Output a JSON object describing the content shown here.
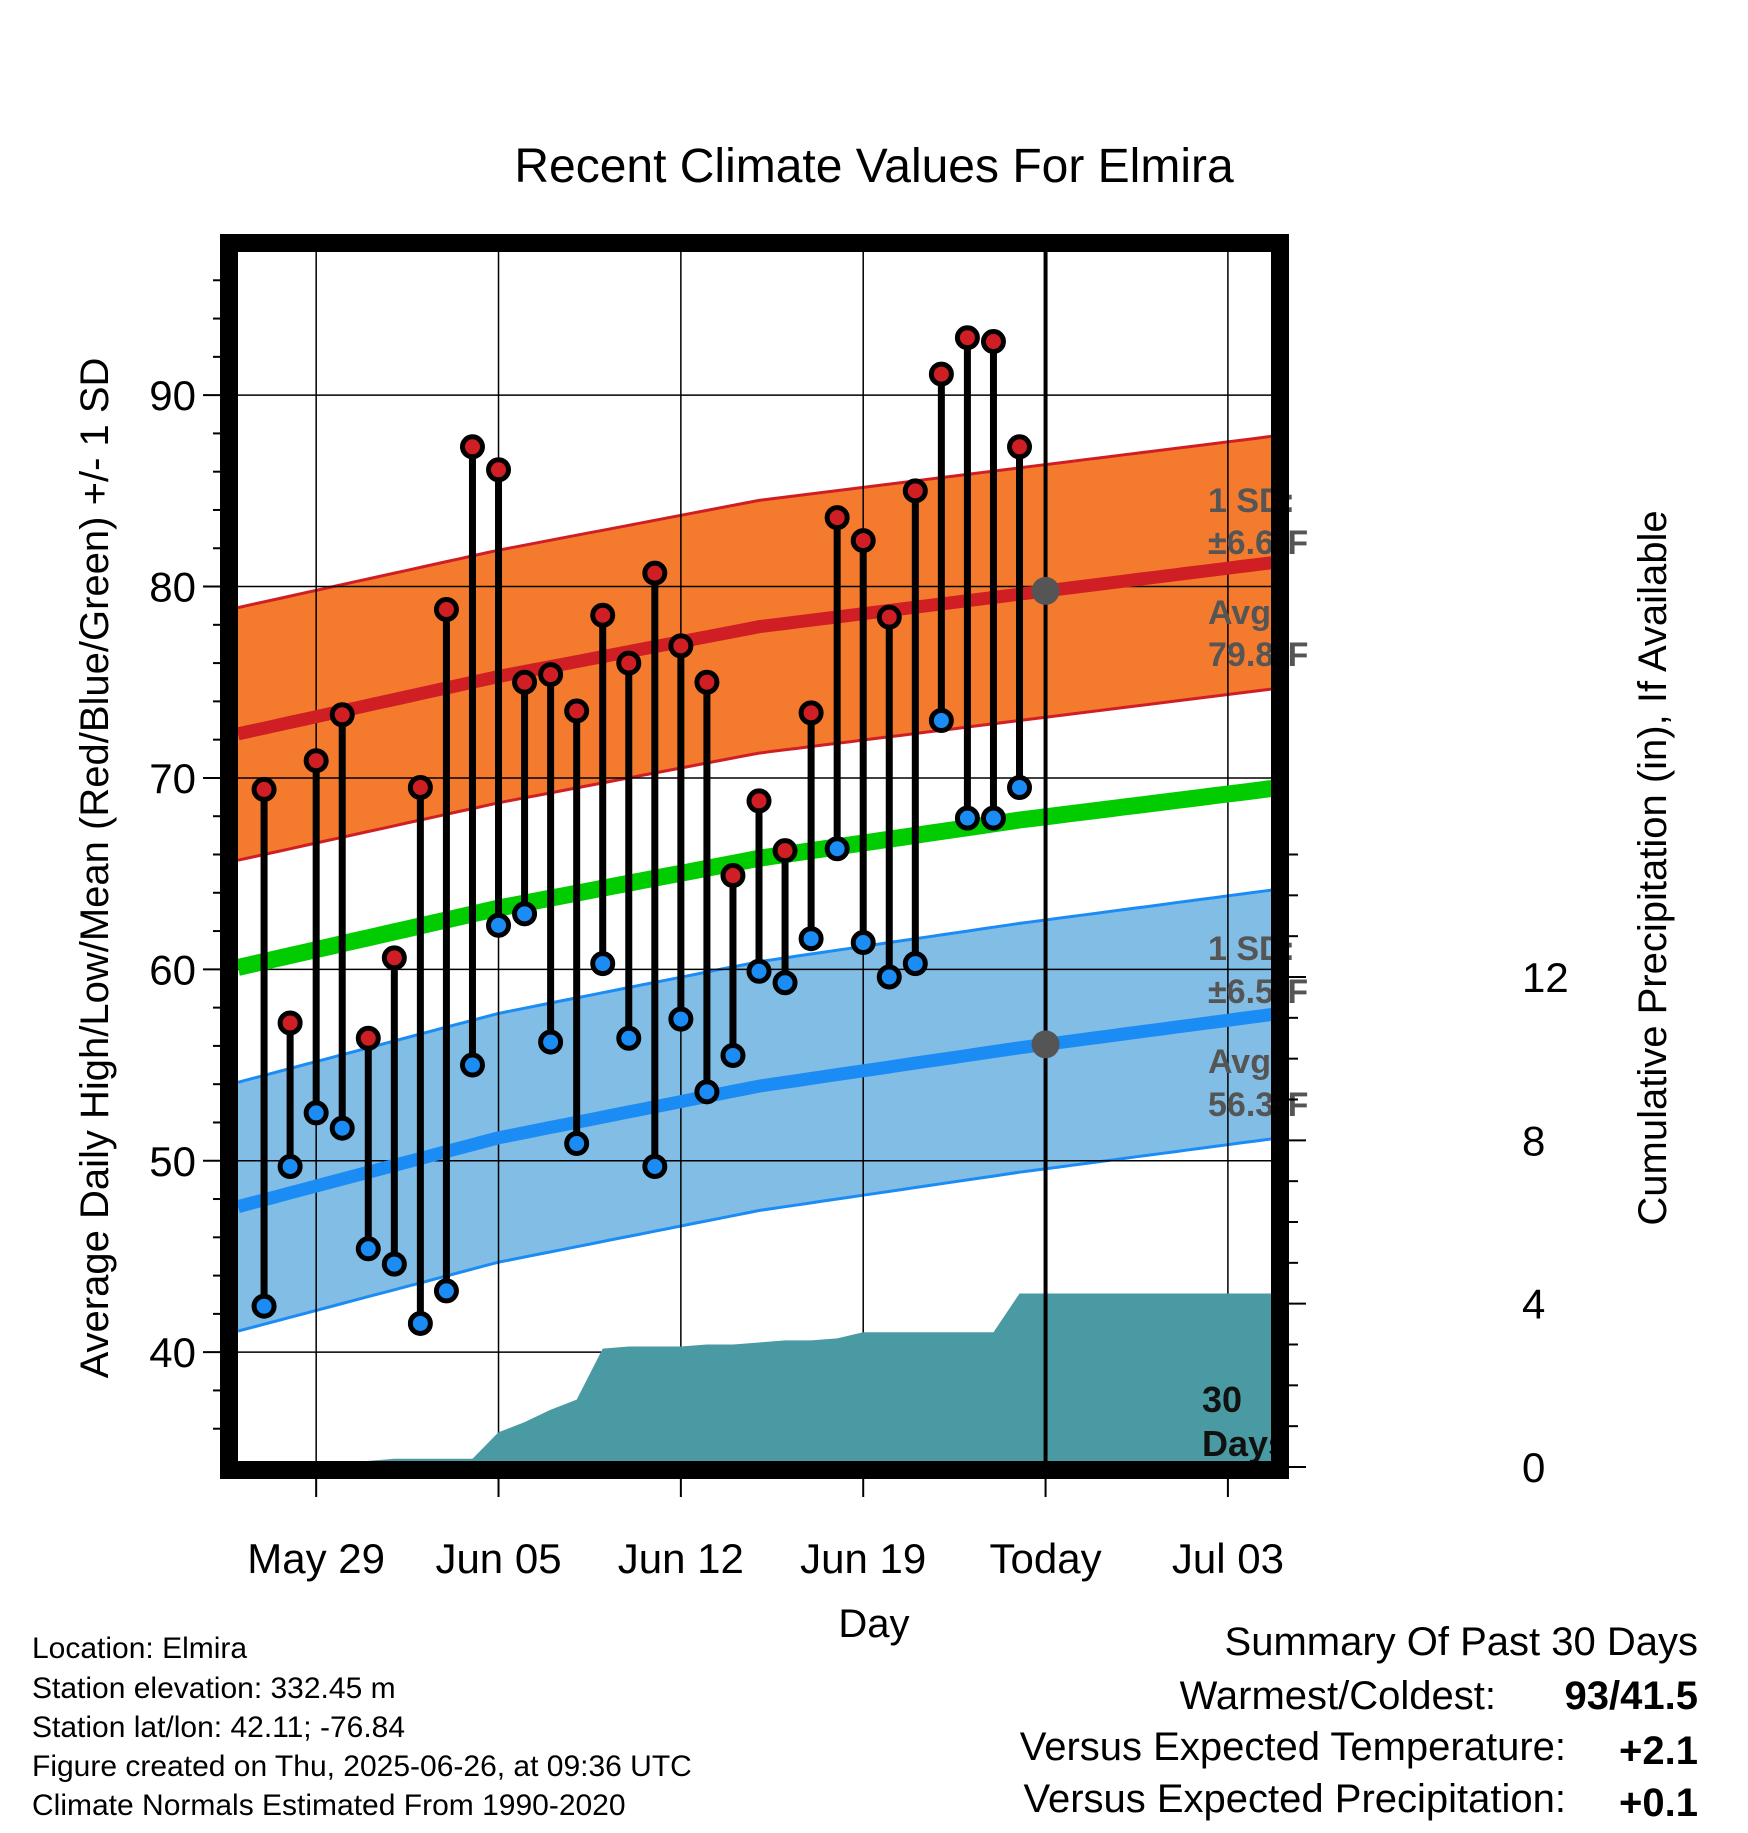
{
  "chart_data": {
    "type": "line",
    "title": "Recent Climate Values For Elmira",
    "xlabel": "Day",
    "ylabel": "Average Daily High/Low/Mean (Red/Blue/Green) +/- 1 SD",
    "y2label": "Cumulative Precipitation (in), If Available",
    "x_ticks": [
      "May 29",
      "Jun 05",
      "Jun 12",
      "Jun 19",
      "Today",
      "Jul 03"
    ],
    "x_tick_days": [
      3,
      10,
      17,
      24,
      31,
      38
    ],
    "xlim_days": [
      -0.5,
      40
    ],
    "ylim": [
      34,
      98
    ],
    "y_ticks": [
      40,
      50,
      60,
      70,
      80,
      90
    ],
    "y2lim": [
      0,
      30
    ],
    "y2_ticks": [
      0,
      4,
      8,
      12
    ],
    "today_day": 31,
    "grid": true,
    "days": [
      1,
      2,
      3,
      4,
      5,
      6,
      7,
      8,
      9,
      10,
      11,
      12,
      13,
      14,
      15,
      16,
      17,
      18,
      19,
      20,
      21,
      22,
      23,
      24,
      25,
      26,
      27,
      28,
      29,
      30
    ],
    "daily_high": [
      69.4,
      57.2,
      70.9,
      73.3,
      56.4,
      60.6,
      69.5,
      78.8,
      87.3,
      86.1,
      75.0,
      75.4,
      73.5,
      78.5,
      76.0,
      80.7,
      76.9,
      75.0,
      64.9,
      68.8,
      66.2,
      73.4,
      83.6,
      82.4,
      78.4,
      85.0,
      91.1,
      93.0,
      92.8,
      87.3
    ],
    "daily_low": [
      42.4,
      49.7,
      52.5,
      51.7,
      45.4,
      44.6,
      41.5,
      43.2,
      55.0,
      62.3,
      62.9,
      56.2,
      50.9,
      60.3,
      56.4,
      49.7,
      57.4,
      53.6,
      55.5,
      59.9,
      59.3,
      61.6,
      66.3,
      61.4,
      59.6,
      60.3,
      73.0,
      67.9,
      67.9,
      69.5
    ],
    "normals_days": [
      0,
      10,
      20,
      30,
      40
    ],
    "normal_high": [
      72.3,
      75.3,
      77.9,
      79.6,
      81.3
    ],
    "normal_low": [
      47.6,
      51.2,
      53.9,
      55.9,
      57.7
    ],
    "normal_mean": [
      60.1,
      63.2,
      65.8,
      67.8,
      69.5
    ],
    "high_sd": 6.6,
    "low_sd": 6.5,
    "precip_days": [
      0,
      1,
      2,
      3,
      4,
      5,
      6,
      7,
      8,
      9,
      10,
      11,
      12,
      13,
      14,
      15,
      16,
      17,
      18,
      19,
      20,
      21,
      22,
      23,
      24,
      25,
      26,
      27,
      28,
      29,
      30,
      40
    ],
    "cumulative_precip": [
      0.0,
      0.0,
      0.0,
      0.05,
      0.1,
      0.15,
      0.2,
      0.2,
      0.2,
      0.2,
      0.85,
      1.1,
      1.4,
      1.65,
      2.9,
      2.95,
      2.95,
      2.95,
      3.0,
      3.0,
      3.05,
      3.1,
      3.1,
      3.15,
      3.3,
      3.3,
      3.3,
      3.3,
      3.3,
      3.3,
      4.25,
      4.25
    ],
    "annotations": {
      "high_sd_line1": "1 SD:",
      "high_sd_line2": "±6.6",
      "high_avg_line1": "Avg:",
      "high_avg_line2": "79.8",
      "low_sd_line1": "1 SD:",
      "low_sd_line2": "±6.5",
      "low_avg_line1": "Avg:",
      "low_avg_line2": "56.3",
      "degree_symbol": "o",
      "unit": "F",
      "days_line1": "30",
      "days_line2": "Days"
    },
    "colors": {
      "high_band": "#f47b2d",
      "high_line": "#d01f24",
      "low_band": "#81bde5",
      "low_line": "#1c8cf5",
      "mean_line": "#00cc00",
      "precip": "#4a9aa4",
      "high_dot": "#d01f24",
      "low_dot": "#1c8cf5",
      "avg_marker": "#555555"
    }
  },
  "info": {
    "location": "Location: Elmira",
    "elevation": "Station elevation: 332.45 m",
    "latlon": "Station lat/lon: 42.11; -76.84",
    "created": "Figure created on Thu, 2025-06-26, at 09:36 UTC",
    "normals": "Climate Normals Estimated From 1990-2020"
  },
  "summary": {
    "heading": "Summary Of Past 30 Days",
    "warm_cold_label": "Warmest/Coldest:",
    "warm_cold_value": "93/41.5",
    "temp_label": "Versus Expected Temperature:",
    "temp_value": "+2.1",
    "temp_color": "#d01f24",
    "precip_label": "Versus Expected Precipitation:",
    "precip_value": "+0.1",
    "precip_color": "#00b300"
  }
}
